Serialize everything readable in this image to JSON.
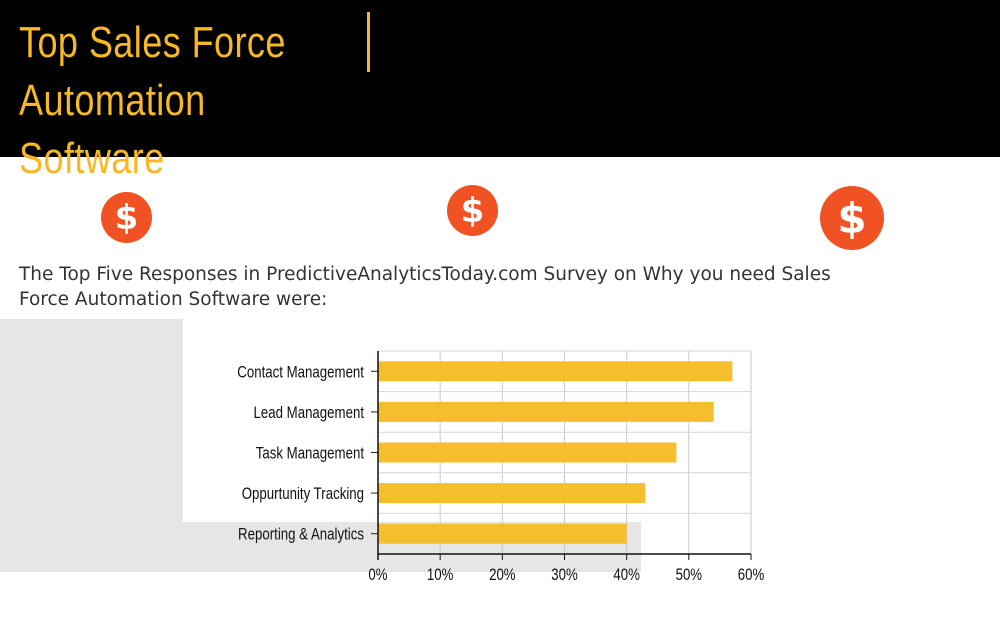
{
  "header": {
    "title_line1": "Top Sales Force",
    "title_line2": "Automation Software"
  },
  "icons": [
    "dollar-icon",
    "dollar-icon",
    "dollar-icon"
  ],
  "intro": {
    "line1": "The Top Five Responses in PredictiveAnalyticsToday.com Survey on Why you need Sales",
    "line2": "Force Automation Software were:"
  },
  "colors": {
    "header_bg": "#000000",
    "accent": "#f6b824",
    "icon": "#f05223",
    "bar": "#f6be2c"
  },
  "chart_data": {
    "type": "bar",
    "orientation": "horizontal",
    "categories": [
      "Contact Management",
      "Lead Management",
      "Task Management",
      "Oppurtunity Tracking",
      "Reporting & Analytics"
    ],
    "values": [
      57,
      54,
      48,
      43,
      40
    ],
    "xlim": [
      0,
      60
    ],
    "xticks": [
      "0%",
      "10%",
      "20%",
      "30%",
      "40%",
      "50%",
      "60%"
    ],
    "grid": true
  }
}
